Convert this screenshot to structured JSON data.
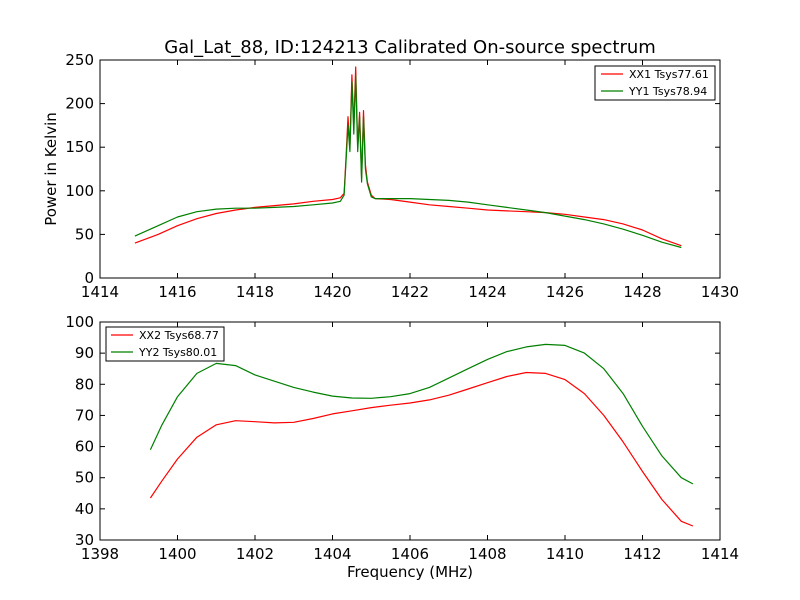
{
  "figure": {
    "title": "Gal_Lat_88, ID:124213 Calibrated On-source spectrum",
    "xlabel": "Frequency (MHz)",
    "ylabel": "Power in Kelvin"
  },
  "colors": {
    "xx": "#ff0000",
    "yy": "#008000"
  },
  "chart_data": [
    {
      "type": "line",
      "title": "Gal_Lat_88, ID:124213 Calibrated On-source spectrum",
      "xlabel": "",
      "ylabel": "Power in Kelvin",
      "xlim": [
        1414,
        1430
      ],
      "ylim": [
        0,
        250
      ],
      "xticks": [
        "1414",
        "1416",
        "1418",
        "1420",
        "1422",
        "1424",
        "1426",
        "1428",
        "1430"
      ],
      "yticks": [
        "0",
        "50",
        "100",
        "150",
        "200",
        "250"
      ],
      "legend_position": "top-right",
      "series": [
        {
          "name": "XX1 Tsys77.61",
          "color": "#ff0000",
          "x": [
            1414.9,
            1415.5,
            1416,
            1416.5,
            1417,
            1417.5,
            1418,
            1418.5,
            1419,
            1419.5,
            1420,
            1420.2,
            1420.3,
            1420.35,
            1420.4,
            1420.45,
            1420.5,
            1420.55,
            1420.6,
            1420.65,
            1420.7,
            1420.75,
            1420.8,
            1420.85,
            1420.9,
            1421,
            1421.1,
            1421.5,
            1422,
            1422.5,
            1423,
            1423.5,
            1424,
            1424.5,
            1425,
            1425.5,
            1426,
            1426.5,
            1427,
            1427.5,
            1428,
            1428.5,
            1429
          ],
          "y": [
            40,
            50,
            60,
            68,
            74,
            78,
            81,
            83,
            85,
            88,
            90,
            92,
            97,
            140,
            185,
            150,
            233,
            175,
            242,
            150,
            190,
            115,
            192,
            130,
            110,
            95,
            91,
            90,
            87,
            84,
            82,
            80,
            78,
            77,
            76,
            75,
            73,
            70,
            67,
            62,
            55,
            45,
            37
          ]
        },
        {
          "name": "YY1 Tsys78.94",
          "color": "#008000",
          "x": [
            1414.9,
            1415.5,
            1416,
            1416.5,
            1417,
            1417.5,
            1418,
            1418.5,
            1419,
            1419.5,
            1420,
            1420.2,
            1420.3,
            1420.35,
            1420.4,
            1420.45,
            1420.5,
            1420.55,
            1420.6,
            1420.65,
            1420.7,
            1420.75,
            1420.8,
            1420.85,
            1420.9,
            1421,
            1421.1,
            1421.5,
            1422,
            1422.5,
            1423,
            1423.5,
            1424,
            1424.5,
            1425,
            1425.5,
            1426,
            1426.5,
            1427,
            1427.5,
            1428,
            1428.5,
            1429
          ],
          "y": [
            48,
            60,
            70,
            76,
            79,
            80,
            80,
            81,
            82,
            84,
            86,
            88,
            95,
            135,
            175,
            145,
            225,
            165,
            232,
            145,
            185,
            110,
            185,
            125,
            108,
            93,
            91,
            91,
            91,
            90,
            89,
            87,
            84,
            81,
            78,
            75,
            71,
            67,
            62,
            56,
            49,
            41,
            35
          ]
        }
      ]
    },
    {
      "type": "line",
      "title": "",
      "xlabel": "Frequency (MHz)",
      "ylabel": "",
      "xlim": [
        1398,
        1414
      ],
      "ylim": [
        30,
        100
      ],
      "xticks": [
        "1398",
        "1400",
        "1402",
        "1404",
        "1406",
        "1408",
        "1410",
        "1412",
        "1414"
      ],
      "yticks": [
        "30",
        "40",
        "50",
        "60",
        "70",
        "80",
        "90",
        "100"
      ],
      "legend_position": "top-left",
      "series": [
        {
          "name": "XX2 Tsys68.77",
          "color": "#ff0000",
          "x": [
            1399.3,
            1399.6,
            1400,
            1400.5,
            1401,
            1401.5,
            1402,
            1402.5,
            1403,
            1403.5,
            1404,
            1404.5,
            1405,
            1405.5,
            1406,
            1406.5,
            1407,
            1407.5,
            1408,
            1408.5,
            1409,
            1409.5,
            1410,
            1410.5,
            1411,
            1411.5,
            1412,
            1412.5,
            1413,
            1413.3
          ],
          "y": [
            43.5,
            49,
            56,
            63,
            67,
            68.3,
            68,
            67.6,
            67.8,
            69,
            70.5,
            71.5,
            72.5,
            73.3,
            74,
            75,
            76.5,
            78.5,
            80.5,
            82.5,
            83.8,
            83.5,
            81.5,
            77,
            70,
            61.5,
            52,
            43,
            36,
            34.5
          ]
        },
        {
          "name": "YY2 Tsys80.01",
          "color": "#008000",
          "x": [
            1399.3,
            1399.6,
            1400,
            1400.5,
            1401,
            1401.5,
            1402,
            1402.5,
            1403,
            1403.5,
            1404,
            1404.5,
            1405,
            1405.5,
            1406,
            1406.5,
            1407,
            1407.5,
            1408,
            1408.5,
            1409,
            1409.5,
            1410,
            1410.5,
            1411,
            1411.5,
            1412,
            1412.5,
            1413,
            1413.3
          ],
          "y": [
            59,
            67,
            76,
            83.5,
            86.7,
            86,
            83,
            81,
            79,
            77.5,
            76.2,
            75.6,
            75.5,
            76,
            77,
            79,
            82,
            85,
            88,
            90.5,
            92,
            92.8,
            92.5,
            90,
            85,
            77,
            66.5,
            57,
            50,
            48
          ]
        }
      ]
    }
  ]
}
